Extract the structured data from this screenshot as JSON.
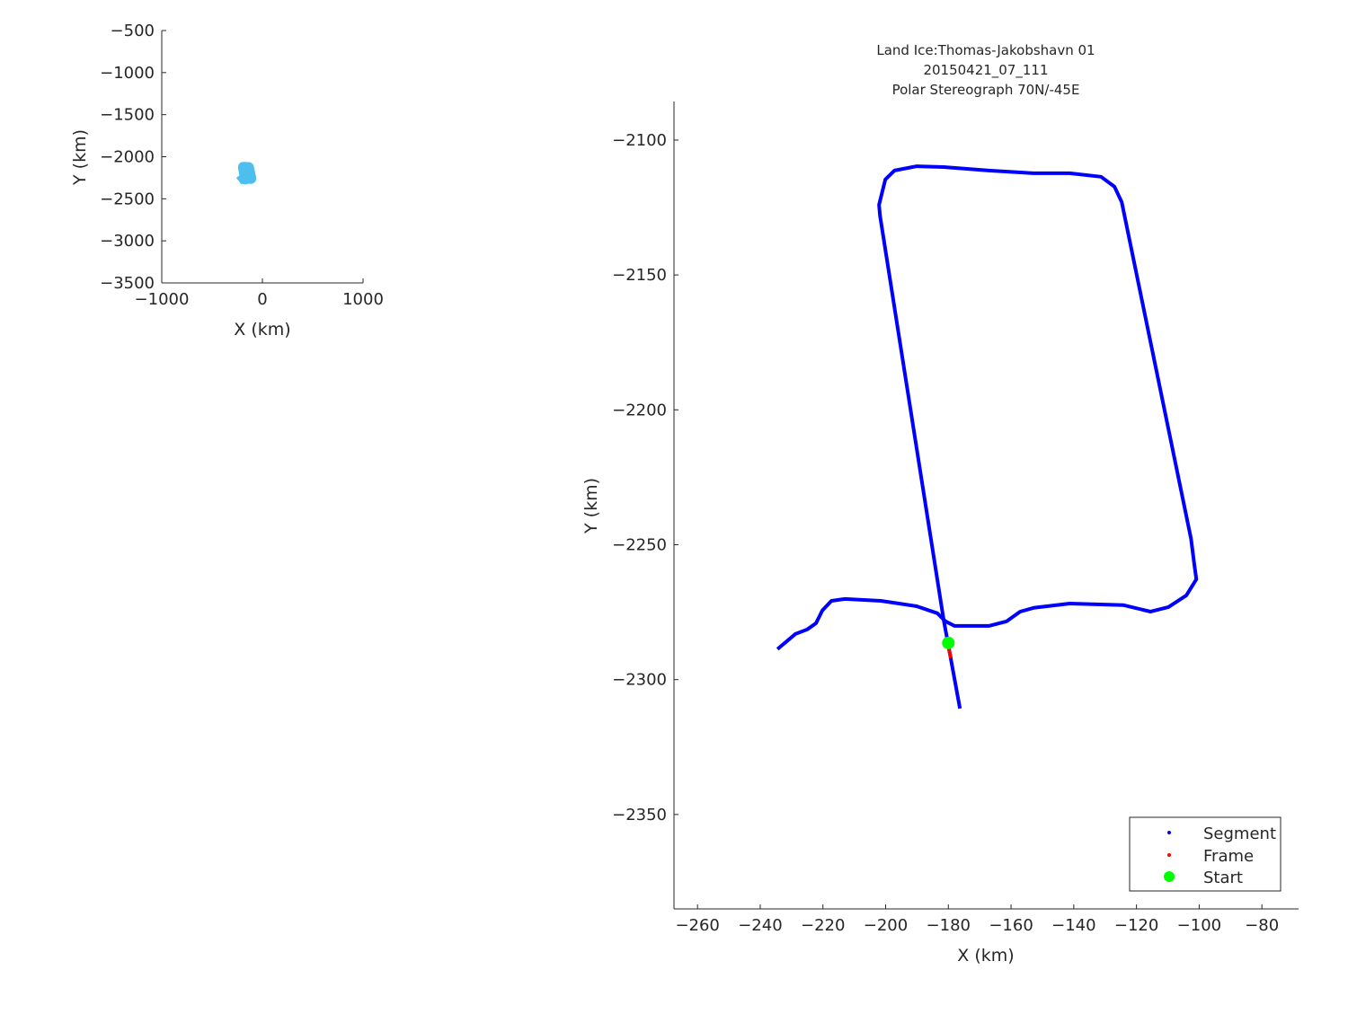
{
  "chart_data": [
    {
      "type": "line",
      "xlabel": "X (km)",
      "ylabel": "Y (km)",
      "xlim": [
        -1000,
        1000
      ],
      "ylim": [
        -3500,
        -500
      ],
      "xticks": [
        -1000,
        0,
        1000
      ],
      "yticks": [
        -3500,
        -3000,
        -2500,
        -2000,
        -1500,
        -1000,
        -500
      ],
      "color": "#4DBEEE",
      "grid": false,
      "series": [
        {
          "x": [
            -234.5,
            -228.8,
            -225.0,
            -222.2,
            -220.2,
            -217.3,
            -213.0,
            -201.5,
            -190.1,
            -183.5,
            -180.9,
            -178.0,
            -167.1,
            -161.4,
            -157.1,
            -152.8,
            -141.3,
            -124.1,
            -115.5,
            -109.8,
            -104.1,
            -100.9,
            -101.5,
            -102.6,
            -124.7,
            -127.0,
            -131.3,
            -141.3,
            -152.8,
            -167.1,
            -181.5,
            -190.1,
            -197.2,
            -200.1,
            -202.1,
            -201.8,
            -181.5,
            -176.3
          ],
          "y": [
            -2288.7,
            -2283.1,
            -2281.4,
            -2279.1,
            -2274.4,
            -2270.8,
            -2270.1,
            -2270.8,
            -2272.8,
            -2275.4,
            -2278.4,
            -2280.1,
            -2280.1,
            -2278.4,
            -2274.8,
            -2273.4,
            -2271.8,
            -2272.4,
            -2274.8,
            -2273.1,
            -2268.8,
            -2262.8,
            -2257.8,
            -2247.8,
            -2123.0,
            -2117.3,
            -2113.6,
            -2112.3,
            -2112.3,
            -2111.3,
            -2110.0,
            -2109.7,
            -2111.3,
            -2114.6,
            -2124.0,
            -2128.0,
            -2277.8,
            -2310.7
          ]
        }
      ]
    },
    {
      "type": "line",
      "title": [
        "Land Ice:Thomas-Jakobshavn 01",
        "20150421_07_111",
        "Polar Stereograph 70N/-45E"
      ],
      "xlabel": "X (km)",
      "ylabel": "Y (km)",
      "xlim": [
        -267.5,
        -68.3
      ],
      "ylim": [
        -2385,
        -2085.7
      ],
      "xticks": [
        -260,
        -240,
        -220,
        -200,
        -180,
        -160,
        -140,
        -120,
        -100,
        -80
      ],
      "yticks": [
        -2350,
        -2300,
        -2250,
        -2200,
        -2150,
        -2100
      ],
      "grid": false,
      "legend_position": "bottom-right",
      "series": [
        {
          "name": "Segment",
          "color": "#0000FF",
          "marker": "dot",
          "x": [
            -234.5,
            -228.8,
            -225.0,
            -222.2,
            -220.2,
            -217.3,
            -213.0,
            -201.5,
            -190.1,
            -183.5,
            -180.9,
            -178.0,
            -167.1,
            -161.4,
            -157.1,
            -152.8,
            -141.3,
            -124.1,
            -115.5,
            -109.8,
            -104.1,
            -100.9,
            -101.5,
            -102.6,
            -124.7,
            -127.0,
            -131.3,
            -141.3,
            -152.8,
            -167.1,
            -181.5,
            -190.1,
            -197.2,
            -200.1,
            -202.1,
            -201.8,
            -181.5,
            -176.3
          ],
          "y": [
            -2288.7,
            -2283.1,
            -2281.4,
            -2279.1,
            -2274.4,
            -2270.8,
            -2270.1,
            -2270.8,
            -2272.8,
            -2275.4,
            -2278.4,
            -2280.1,
            -2280.1,
            -2278.4,
            -2274.8,
            -2273.4,
            -2271.8,
            -2272.4,
            -2274.8,
            -2273.1,
            -2268.8,
            -2262.8,
            -2257.8,
            -2247.8,
            -2123.0,
            -2117.3,
            -2113.6,
            -2112.3,
            -2112.3,
            -2111.3,
            -2110.0,
            -2109.7,
            -2111.3,
            -2114.6,
            -2124.0,
            -2128.0,
            -2277.8,
            -2310.7
          ]
        },
        {
          "name": "Frame",
          "color": "#FF0000",
          "marker": "dot",
          "x": [
            -180.0,
            -179.2
          ],
          "y": [
            -2287.7,
            -2292.0
          ]
        },
        {
          "name": "Start",
          "color": "#00FF00",
          "marker": "x",
          "x": [
            -180.0
          ],
          "y": [
            -2286.4
          ]
        }
      ]
    }
  ]
}
